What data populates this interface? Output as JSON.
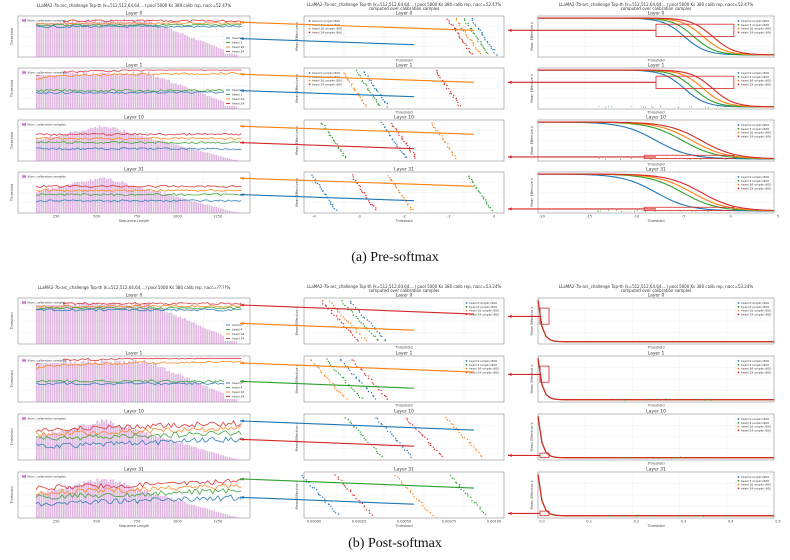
{
  "colors": {
    "hist": "#c779c9",
    "head_a": "#1f77b4",
    "head_b": "#ff7f0e",
    "head_c": "#2ca02c",
    "head_d": "#d62728",
    "arrow_red": "#d62728",
    "arrow_blue": "#1f77b4",
    "arrow_orange": "#ff7f0e",
    "arrow_green": "#2ca02c"
  },
  "sections": [
    {
      "id": "pre",
      "caption": "(a) Pre-softmax",
      "left_title": "LLaMA2-7b-arc_challenge Top-th (k=512,512,64,64,...) pool 5000 Ks 380 calib rep, nacc=52.47%",
      "mid_title": "LLaMA2-7b-arc_challenge Top-th (k=512,512,64,64,...) pool 5000 Ks 380 calib rep, nacc=52.47%",
      "mid_subtitle": "computed over calibration samples",
      "right_title": "LLaMA2-7b-arc_challenge Top-th (k=512,512,64,64,...) pool 5000 Ks 380 calib rep, nacc=52.47%",
      "right_subtitle": "computed over calibration samples",
      "layers": [
        "Layer 0",
        "Layer 1",
        "Layer 10",
        "Layer 31"
      ],
      "left_legend": {
        "hist_label": "Num. calibration samples",
        "heads": [
          "head 0",
          "head 1",
          "head 16",
          "head 24"
        ]
      },
      "mid_legend": [
        "head 0 sorpkn 800",
        "head 4 sorpkn 800",
        "head 16 sorpkn 800",
        "head 24 sorpkn 800"
      ],
      "right_legend": [
        "head 0 sorpkn 800",
        "head 4 sorpkn 800",
        "head 16 sorpkn 800",
        "head 24 sorpkn 800"
      ],
      "left_ylabel": "Threshold",
      "left_xlabel": "Sequence Length",
      "left_xticks": [
        "250",
        "500",
        "750",
        "1000",
        "1250"
      ],
      "mid_xlabel": "Threshold",
      "mid_ylabel": "Mean Effective k",
      "mid_xticks": [
        "-4",
        "-3",
        "-2",
        "-1",
        "0"
      ],
      "right_xlabel": "Threshold",
      "right_ylabel": "Mean Effective k",
      "right_xticks": [
        "-20",
        "-15",
        "-10",
        "-5",
        "0",
        "5"
      ]
    },
    {
      "id": "post",
      "caption": "(b) Post-softmax",
      "left_title": "LLaMA2-7b-arc_challenge Top-th (k=512,512,64,64,...) pool 5000 Ks 380 calib rep, nacc=??.??%",
      "mid_title": "LLaMA2-7b-arc_challenge Top-th (k=512,512,64,64,...) pool 5000 Ks 380 calib rep, nacc=53.24%",
      "mid_subtitle": "computed over calibration samples",
      "right_title": "LLaMA2-7b-arc_challenge Top-th (k=512,512,64,64,...) pool 5000 Ks 380 calib rep, nacc=53.24%",
      "right_subtitle": "computed over calibration samples",
      "layers": [
        "Layer 0",
        "Layer 1",
        "Layer 10",
        "Layer 31"
      ],
      "left_legend": {
        "hist_label": "Num. calibration samples",
        "heads": [
          "head 0",
          "head 4",
          "head 16",
          "head 24"
        ]
      },
      "mid_legend": [
        "head 0 sorpkn 800",
        "head 4 sorpkn 800",
        "head 16 sorpkn 800",
        "head 24 sorpkn 800"
      ],
      "right_legend": [
        "head 0 sorpkn 800",
        "head 4 sorpkn 800",
        "head 16 sorpkn 800",
        "head 24 sorpkn 800"
      ],
      "left_ylabel": "Threshold",
      "left_xlabel": "Sequence Length",
      "left_xticks": [
        "250",
        "500",
        "750",
        "1000",
        "1250"
      ],
      "mid_xlabel": "Threshold",
      "mid_ylabel": "Mean Effective k",
      "mid_xticks": [
        "0.00000",
        "0.00025",
        "0.00050",
        "0.00075",
        "0.00100"
      ],
      "right_xlabel": "Threshold",
      "right_ylabel": "Mean Effective k",
      "right_xticks": [
        "0.0",
        "0.1",
        "0.2",
        "0.3",
        "0.4",
        "0.5"
      ]
    }
  ],
  "chart_data": [
    {
      "type": "line",
      "section": "pre",
      "panel": "left",
      "x_range": [
        0,
        1400
      ],
      "series": [
        {
          "name": "head 0",
          "trend": "rising"
        },
        {
          "name": "head 1",
          "trend": "rising"
        },
        {
          "name": "head 16",
          "trend": "flat"
        },
        {
          "name": "head 24",
          "trend": "flat"
        }
      ]
    },
    {
      "type": "scatter",
      "section": "pre",
      "panel": "middle",
      "x_range": [
        -4.5,
        0.5
      ]
    },
    {
      "type": "line",
      "section": "pre",
      "panel": "right",
      "x_range": [
        -22,
        6
      ],
      "shape": "sigmoid-decreasing"
    },
    {
      "type": "line",
      "section": "post",
      "panel": "left",
      "x_range": [
        0,
        1400
      ]
    },
    {
      "type": "scatter",
      "section": "post",
      "panel": "middle",
      "x_range": [
        0,
        0.0011
      ]
    },
    {
      "type": "line",
      "section": "post",
      "panel": "right",
      "x_range": [
        0,
        0.55
      ],
      "shape": "sharp-decay"
    }
  ]
}
